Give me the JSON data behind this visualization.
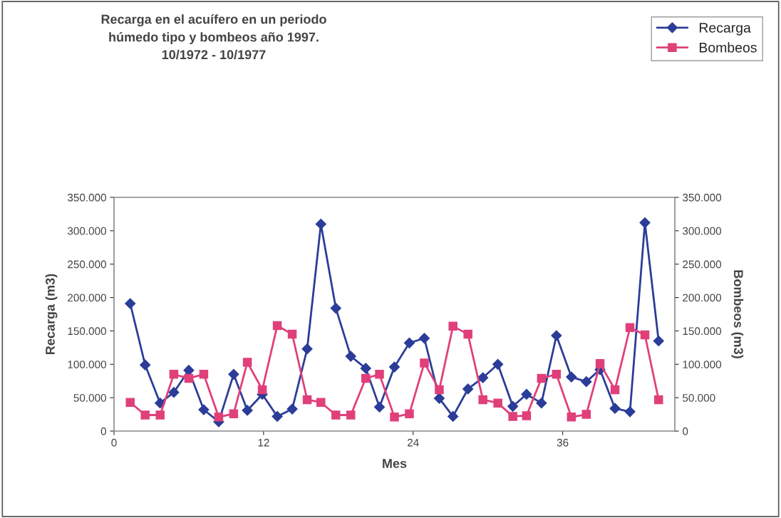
{
  "chart_data": {
    "type": "line",
    "title": "Recarga en el acuífero en un periodo\nhúmedo tipo y bombeos año 1997.\n10/1972 - 10/1977",
    "xlabel": "Mes",
    "ylabel": "Recarga (m3)",
    "y2label": "Bombeos (m3)",
    "x": [
      1.3,
      2.5,
      3.7,
      4.8,
      6.0,
      7.2,
      8.4,
      9.6,
      10.7,
      11.9,
      13.1,
      14.3,
      15.5,
      16.6,
      17.8,
      19.0,
      20.2,
      21.3,
      22.5,
      23.7,
      24.9,
      26.1,
      27.2,
      28.4,
      29.6,
      30.8,
      32.0,
      33.1,
      34.3,
      35.5,
      36.7,
      37.9,
      39.0,
      40.2,
      41.4,
      42.6,
      43.7
    ],
    "series": [
      {
        "name": "Recarga",
        "color": "#2b3d99",
        "marker": "diamond",
        "values": [
          191000,
          99000,
          42000,
          58000,
          91000,
          32000,
          14000,
          85000,
          31000,
          55000,
          22000,
          33000,
          123000,
          310000,
          184000,
          112000,
          94000,
          36000,
          96000,
          132000,
          139000,
          49000,
          22000,
          63000,
          80000,
          100000,
          37000,
          55000,
          42000,
          143000,
          81000,
          74000,
          92000,
          34000,
          29000,
          312000,
          135000
        ]
      },
      {
        "name": "Bombeos",
        "color": "#e0407a",
        "marker": "square",
        "axis": "y2",
        "values": [
          43000,
          24000,
          24000,
          85000,
          79000,
          85000,
          21000,
          26000,
          103000,
          62000,
          158000,
          145000,
          47000,
          43000,
          24000,
          24000,
          79000,
          85000,
          21000,
          26000,
          102000,
          62000,
          157000,
          145000,
          47000,
          42000,
          22000,
          23000,
          79000,
          85000,
          21000,
          25000,
          101000,
          62000,
          155000,
          144000,
          47000
        ]
      }
    ],
    "xlim": [
      0,
      45
    ],
    "xticks": [
      0,
      12,
      24,
      36
    ],
    "ylim": [
      0,
      350000
    ],
    "yticks": [
      0,
      {
        "value": 50000,
        "label": "50.000"
      },
      {
        "value": 100000,
        "label": "100.000"
      },
      {
        "value": 150000,
        "label": "150.000"
      },
      {
        "value": 200000,
        "label": "200.000"
      },
      {
        "value": 250000,
        "label": "250.000"
      },
      {
        "value": 300000,
        "label": "300.000"
      },
      {
        "value": 350000,
        "label": "350.000"
      }
    ],
    "y2lim": [
      0,
      350000
    ],
    "y2ticks": [
      0,
      {
        "value": 50000,
        "label": "50.000"
      },
      {
        "value": 100000,
        "label": "100.000"
      },
      {
        "value": 150000,
        "label": "150.000"
      },
      {
        "value": 200000,
        "label": "200.000"
      },
      {
        "value": 250000,
        "label": "250.000"
      },
      {
        "value": 300000,
        "label": "300.000"
      },
      {
        "value": 350000,
        "label": "350.000"
      }
    ],
    "legend": "top right",
    "grid": false
  }
}
